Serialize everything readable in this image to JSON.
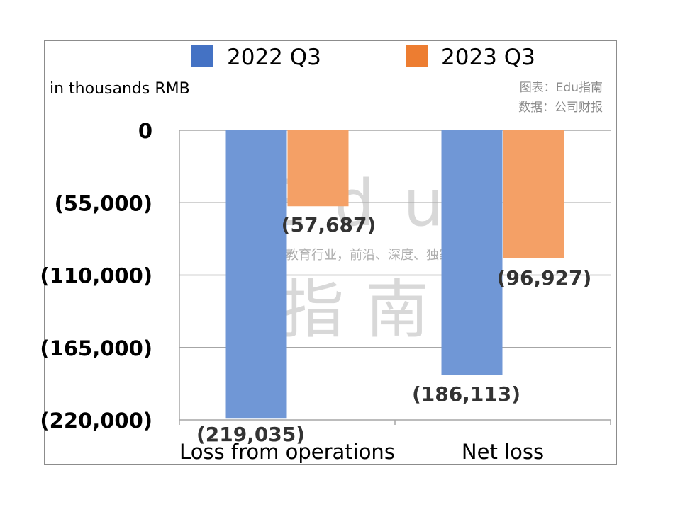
{
  "chart_data": {
    "type": "bar",
    "unit_label": "in thousands RMB",
    "categories": [
      "Loss from operations",
      "Net loss"
    ],
    "series": [
      {
        "name": "2022 Q3",
        "color": "#7097d6",
        "legend_color": "#4472c4",
        "values": [
          -219035,
          -186113
        ]
      },
      {
        "name": "2023 Q3",
        "color": "#f4a066",
        "legend_color": "#ed7d31",
        "values": [
          -57687,
          -96927
        ]
      }
    ],
    "data_labels": [
      [
        "(219,035)",
        "(186,113)"
      ],
      [
        "(57,687)",
        "(96,927)"
      ]
    ],
    "y_ticks": [
      {
        "value": 0,
        "label": "0"
      },
      {
        "value": -55000,
        "label": "(55,000)"
      },
      {
        "value": -110000,
        "label": "(110,000)"
      },
      {
        "value": -165000,
        "label": "(165,000)"
      },
      {
        "value": -220000,
        "label": "(220,000)"
      }
    ],
    "ylim": [
      -220000,
      0
    ],
    "grid": true,
    "legend_position": "top"
  },
  "source": {
    "line1": "图表：Edu指南",
    "line2": "数据：公司财报"
  },
  "watermark": {
    "top": "Edu",
    "middle": "教育行业，前沿、深度、独家",
    "bottom": "指南"
  }
}
